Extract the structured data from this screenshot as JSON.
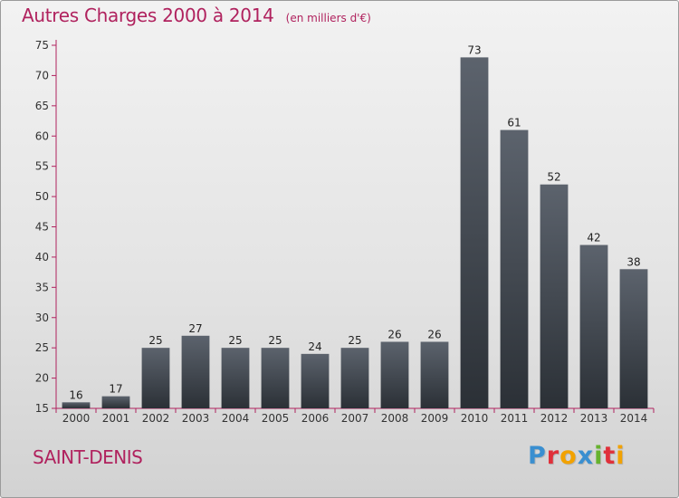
{
  "title": "Autres Charges 2000 à 2014",
  "subtitle": "(en milliers d'€)",
  "footer_city": "SAINT-DENIS",
  "logo": {
    "letters": [
      "P",
      "r",
      "o",
      "x",
      "i",
      "t",
      "i"
    ],
    "colors": [
      "#3a8fd0",
      "#e0303a",
      "#f2a200",
      "#3a8fd0",
      "#66b22e",
      "#e0303a",
      "#f2a200"
    ]
  },
  "colors": {
    "title": "#b0225e",
    "bar_top": "#5c636d",
    "bar_bottom": "#2b3036",
    "axis": "#b0225e"
  },
  "chart_data": {
    "type": "bar",
    "categories": [
      "2000",
      "2001",
      "2002",
      "2003",
      "2004",
      "2005",
      "2006",
      "2007",
      "2008",
      "2009",
      "2010",
      "2011",
      "2012",
      "2013",
      "2014"
    ],
    "values": [
      16,
      17,
      25,
      27,
      25,
      25,
      24,
      25,
      26,
      26,
      73,
      61,
      52,
      42,
      38
    ],
    "ylim": [
      15,
      75
    ],
    "yticks": [
      15,
      20,
      25,
      30,
      35,
      40,
      45,
      50,
      55,
      60,
      65,
      70,
      75
    ],
    "grid": false,
    "xlabel": "",
    "ylabel": ""
  }
}
